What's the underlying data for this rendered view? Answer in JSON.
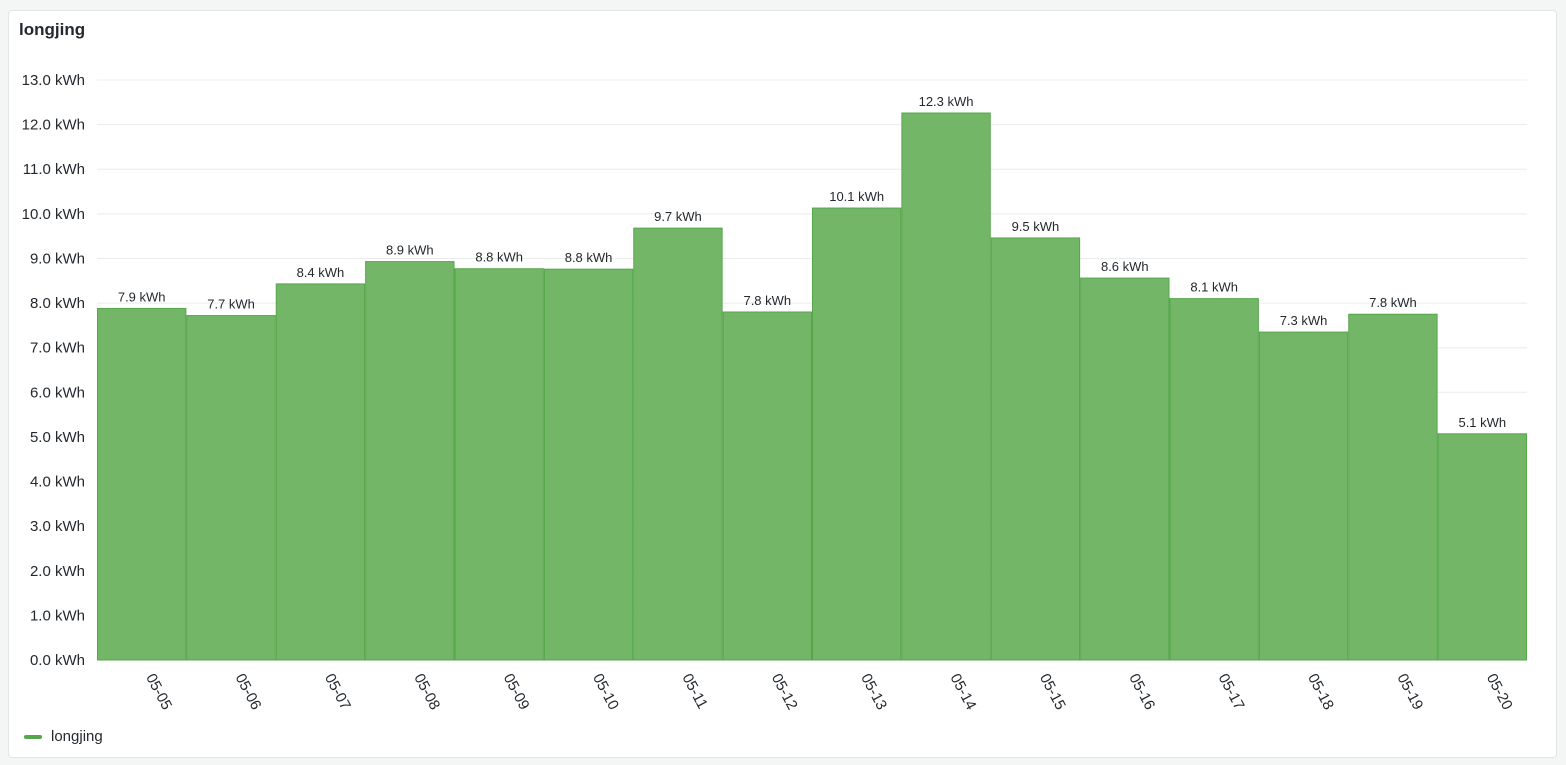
{
  "panel": {
    "title": "longjing"
  },
  "colors": {
    "bar_fill": "#73b667",
    "bar_stroke": "#56a64b",
    "grid": "#ebebeb",
    "axis_text": "#24292e",
    "legend_swatch": "#56a64b"
  },
  "chart_data": {
    "type": "bar",
    "title": "longjing",
    "categories": [
      "05-05",
      "05-06",
      "05-07",
      "05-08",
      "05-09",
      "05-10",
      "05-11",
      "05-12",
      "05-13",
      "05-14",
      "05-15",
      "05-16",
      "05-17",
      "05-18",
      "05-19",
      "05-20"
    ],
    "series": [
      {
        "name": "longjing",
        "values": [
          7.88,
          7.72,
          8.43,
          8.93,
          8.77,
          8.76,
          9.68,
          7.8,
          10.13,
          12.26,
          9.46,
          8.56,
          8.1,
          7.35,
          7.75,
          5.07
        ],
        "labels": [
          "7.9 kWh",
          "7.7 kWh",
          "8.4 kWh",
          "8.9 kWh",
          "8.8 kWh",
          "8.8 kWh",
          "9.7 kWh",
          "7.8 kWh",
          "10.1 kWh",
          "12.3 kWh",
          "9.5 kWh",
          "8.6 kWh",
          "8.1 kWh",
          "7.3 kWh",
          "7.8 kWh",
          "5.1 kWh"
        ]
      }
    ],
    "ylim": [
      0,
      13
    ],
    "yticks": [
      "0.0 kWh",
      "1.0 kWh",
      "2.0 kWh",
      "3.0 kWh",
      "4.0 kWh",
      "5.0 kWh",
      "6.0 kWh",
      "7.0 kWh",
      "8.0 kWh",
      "9.0 kWh",
      "10.0 kWh",
      "11.0 kWh",
      "12.0 kWh",
      "13.0 kWh"
    ],
    "xlabel": "",
    "ylabel": "",
    "grid": true,
    "legend_position": "bottom-left"
  }
}
